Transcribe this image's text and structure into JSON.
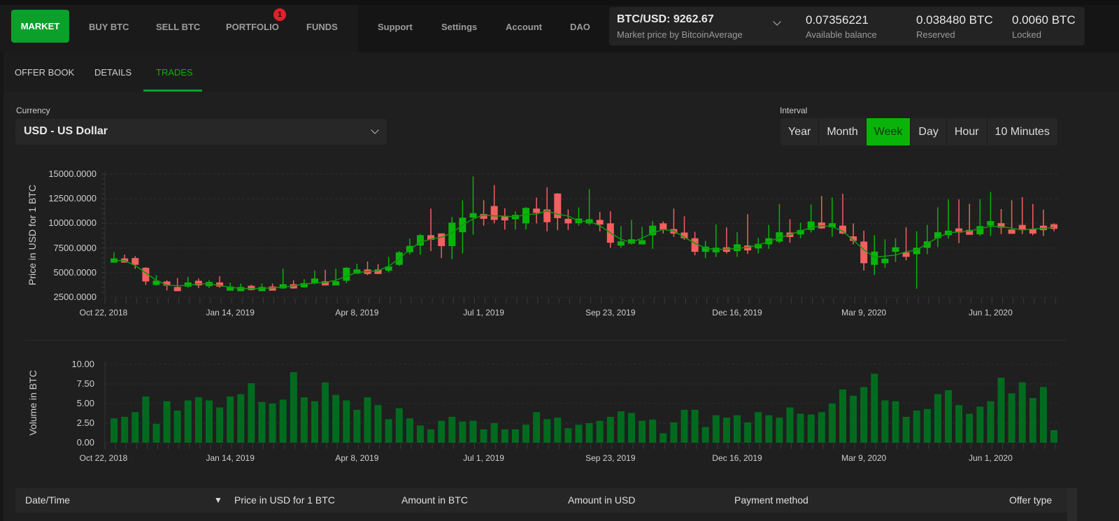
{
  "nav": {
    "market": "MARKET",
    "buy": "BUY BTC",
    "sell": "SELL BTC",
    "portfolio": "PORTFOLIO",
    "portfolio_badge": "1",
    "funds": "FUNDS",
    "support": "Support",
    "settings": "Settings",
    "account": "Account",
    "dao": "DAO"
  },
  "balance": {
    "price": "BTC/USD: 9262.67",
    "price_source": "Market price by BitcoinAverage",
    "available": "0.07356221",
    "available_label": "Available balance",
    "reserved": "0.038480 BTC",
    "reserved_label": "Reserved",
    "locked": "0.0060 BTC",
    "locked_label": "Locked"
  },
  "tabs": [
    {
      "label": "OFFER BOOK"
    },
    {
      "label": "DETAILS"
    },
    {
      "label": "TRADES",
      "active": true
    }
  ],
  "currency": {
    "label": "Currency",
    "value": "USD  -  US Dollar"
  },
  "interval": {
    "label": "Interval",
    "options": [
      "Year",
      "Month",
      "Week",
      "Day",
      "Hour",
      "10 Minutes"
    ],
    "selected": "Week"
  },
  "colors": {
    "accent": "#0aa02a",
    "up": "#0ab30a",
    "down": "#f55f5f",
    "volume": "#006b1f",
    "badge": "#e0202a"
  },
  "chart_data": [
    {
      "type": "candlestick",
      "ylabel": "Price in USD for 1 BTC",
      "ylim": [
        2500,
        15000
      ],
      "yticks": [
        "15000.0000",
        "12500.0000",
        "10000.0000",
        "7500.0000",
        "5000.0000",
        "2500.0000"
      ],
      "xticks": [
        "Oct 22, 2018",
        "Jan 14, 2019",
        "Apr 8, 2019",
        "Jul 1, 2019",
        "Sep 23, 2019",
        "Dec 16, 2019",
        "Mar 9, 2020",
        "Jun 1, 2020"
      ],
      "xtick_dates": [
        "2018-10-22",
        "2019-01-14",
        "2019-04-08",
        "2019-07-01",
        "2019-09-23",
        "2019-12-16",
        "2020-03-09",
        "2020-06-01"
      ],
      "grid": true,
      "moving_average": true,
      "dates": [
        "2018-10-29",
        "2018-11-05",
        "2018-11-12",
        "2018-11-19",
        "2018-11-26",
        "2018-12-03",
        "2018-12-10",
        "2018-12-17",
        "2018-12-24",
        "2018-12-31",
        "2019-01-07",
        "2019-01-14",
        "2019-01-21",
        "2019-01-28",
        "2019-02-04",
        "2019-02-11",
        "2019-02-18",
        "2019-02-25",
        "2019-03-04",
        "2019-03-11",
        "2019-03-18",
        "2019-03-25",
        "2019-04-01",
        "2019-04-08",
        "2019-04-15",
        "2019-04-22",
        "2019-04-29",
        "2019-05-06",
        "2019-05-13",
        "2019-05-20",
        "2019-05-27",
        "2019-06-03",
        "2019-06-10",
        "2019-06-17",
        "2019-06-24",
        "2019-07-01",
        "2019-07-08",
        "2019-07-15",
        "2019-07-22",
        "2019-07-29",
        "2019-08-05",
        "2019-08-12",
        "2019-08-19",
        "2019-08-26",
        "2019-09-02",
        "2019-09-09",
        "2019-09-16",
        "2019-09-23",
        "2019-09-30",
        "2019-10-07",
        "2019-10-14",
        "2019-10-21",
        "2019-10-28",
        "2019-11-04",
        "2019-11-11",
        "2019-11-18",
        "2019-11-25",
        "2019-12-02",
        "2019-12-09",
        "2019-12-16",
        "2019-12-23",
        "2019-12-30",
        "2020-01-06",
        "2020-01-13",
        "2020-01-20",
        "2020-01-27",
        "2020-02-03",
        "2020-02-10",
        "2020-02-17",
        "2020-02-24",
        "2020-03-02",
        "2020-03-09",
        "2020-03-16",
        "2020-03-23",
        "2020-03-30",
        "2020-04-06",
        "2020-04-13",
        "2020-04-20",
        "2020-04-27",
        "2020-05-04",
        "2020-05-11",
        "2020-05-18",
        "2020-05-25",
        "2020-06-01",
        "2020-06-08",
        "2020-06-15",
        "2020-06-22",
        "2020-06-29",
        "2020-07-06",
        "2020-07-13"
      ],
      "ohlc": [
        [
          6020,
          7060,
          6020,
          6440
        ],
        [
          6440,
          6830,
          6020,
          6020
        ],
        [
          6480,
          6670,
          5370,
          5790
        ],
        [
          5490,
          5560,
          3750,
          4100
        ],
        [
          3750,
          4740,
          3680,
          4180
        ],
        [
          4100,
          4210,
          3190,
          3700
        ],
        [
          3540,
          4440,
          3120,
          3120
        ],
        [
          3590,
          4580,
          3470,
          4000
        ],
        [
          4170,
          4400,
          3430,
          3700
        ],
        [
          3660,
          4240,
          3430,
          4050
        ],
        [
          4000,
          4630,
          3470,
          3590
        ],
        [
          3190,
          3980,
          3190,
          3590
        ],
        [
          3120,
          3890,
          3120,
          3540
        ],
        [
          3660,
          3770,
          3190,
          3240
        ],
        [
          3170,
          3890,
          3170,
          3540
        ],
        [
          3590,
          3890,
          3170,
          3170
        ],
        [
          3400,
          5390,
          3360,
          3820
        ],
        [
          3820,
          4210,
          3360,
          3400
        ],
        [
          3520,
          4330,
          3470,
          3930
        ],
        [
          3930,
          5210,
          3820,
          4400
        ],
        [
          4120,
          5280,
          3700,
          3700
        ],
        [
          3750,
          5390,
          3700,
          4120
        ],
        [
          4170,
          5560,
          3930,
          5490
        ],
        [
          4930,
          5900,
          4860,
          5320
        ],
        [
          5320,
          6130,
          4740,
          4860
        ],
        [
          5320,
          5860,
          4860,
          4860
        ],
        [
          5210,
          6600,
          5020,
          5620
        ],
        [
          5790,
          7180,
          5670,
          7060
        ],
        [
          7060,
          8450,
          6830,
          7710
        ],
        [
          7750,
          8910,
          6830,
          8800
        ],
        [
          8800,
          11500,
          7180,
          8330
        ],
        [
          8980,
          8980,
          6480,
          7690
        ],
        [
          7690,
          10650,
          6370,
          10070
        ],
        [
          9100,
          12340,
          6940,
          10580
        ],
        [
          10580,
          14770,
          8840,
          11040
        ],
        [
          10950,
          12340,
          9770,
          10460
        ],
        [
          11760,
          13890,
          10000,
          10350
        ],
        [
          10740,
          11530,
          9370,
          10300
        ],
        [
          10420,
          11230,
          9370,
          10860
        ],
        [
          10000,
          11640,
          9370,
          11570
        ],
        [
          11500,
          12620,
          10000,
          11060
        ],
        [
          11410,
          13660,
          9190,
          10120
        ],
        [
          13030,
          13080,
          9310,
          10530
        ],
        [
          10460,
          11410,
          9330,
          10000
        ],
        [
          10020,
          11620,
          9770,
          10490
        ],
        [
          10000,
          13470,
          9840,
          10420
        ],
        [
          10350,
          11160,
          9190,
          9880
        ],
        [
          10000,
          11230,
          7520,
          8030
        ],
        [
          7750,
          9720,
          7520,
          8170
        ],
        [
          7940,
          10350,
          7870,
          8380
        ],
        [
          7870,
          9650,
          7870,
          8290
        ],
        [
          8800,
          10250,
          7410,
          9770
        ],
        [
          10000,
          10190,
          8980,
          9370
        ],
        [
          9420,
          11500,
          8630,
          8960
        ],
        [
          9070,
          10720,
          8330,
          8490
        ],
        [
          8490,
          9140,
          6760,
          7110
        ],
        [
          7110,
          8220,
          6480,
          7640
        ],
        [
          7060,
          9880,
          6600,
          7520
        ],
        [
          7570,
          9610,
          6940,
          7110
        ],
        [
          7180,
          9100,
          6600,
          7870
        ],
        [
          7750,
          10930,
          6900,
          7250
        ],
        [
          7450,
          8520,
          6940,
          7920
        ],
        [
          7870,
          9840,
          7410,
          8490
        ],
        [
          8150,
          11970,
          7990,
          9100
        ],
        [
          9070,
          10420,
          8030,
          8610
        ],
        [
          8870,
          10070,
          8490,
          9330
        ],
        [
          9330,
          11920,
          9070,
          10190
        ],
        [
          10090,
          12780,
          9440,
          9490
        ],
        [
          9610,
          12620,
          8630,
          10020
        ],
        [
          9770,
          13010,
          8910,
          8960
        ],
        [
          8680,
          10000,
          7870,
          8220
        ],
        [
          8150,
          9260,
          5210,
          5950
        ],
        [
          5790,
          8800,
          4740,
          7130
        ],
        [
          5950,
          8380,
          5490,
          6410
        ],
        [
          7110,
          8490,
          6090,
          7570
        ],
        [
          7060,
          9610,
          6250,
          6600
        ],
        [
          6870,
          9210,
          3360,
          7520
        ],
        [
          7520,
          9840,
          6870,
          8170
        ],
        [
          8490,
          11620,
          7590,
          9100
        ],
        [
          8800,
          12430,
          8450,
          9260
        ],
        [
          9490,
          12430,
          7990,
          9070
        ],
        [
          9330,
          11990,
          8910,
          8840
        ],
        [
          8890,
          12450,
          8730,
          9720
        ],
        [
          9770,
          13190,
          8730,
          10230
        ],
        [
          10020,
          11460,
          8910,
          9560
        ],
        [
          9370,
          12340,
          8960,
          8960
        ],
        [
          9840,
          12660,
          8910,
          9370
        ],
        [
          9420,
          11970,
          8800,
          8960
        ],
        [
          9770,
          11390,
          8730,
          9310
        ],
        [
          9910,
          10000,
          9200,
          9440
        ]
      ]
    },
    {
      "type": "bar",
      "ylabel": "Volume in BTC",
      "ylim": [
        0,
        10
      ],
      "yticks": [
        "10.00",
        "7.50",
        "5.00",
        "2.50",
        "0.00"
      ],
      "xticks": [
        "Oct 22, 2018",
        "Jan 14, 2019",
        "Apr 8, 2019",
        "Jul 1, 2019",
        "Sep 23, 2019",
        "Dec 16, 2019",
        "Mar 9, 2020",
        "Jun 1, 2020"
      ],
      "grid": true,
      "values": [
        3.1,
        3.3,
        3.9,
        5.9,
        2.4,
        5.3,
        4.1,
        5.4,
        5.8,
        5.4,
        4.5,
        5.9,
        6.2,
        7.6,
        5.2,
        5.0,
        5.5,
        9.0,
        5.8,
        5.3,
        7.7,
        6.1,
        5.4,
        4.2,
        5.8,
        4.8,
        3.0,
        4.4,
        3.1,
        2.2,
        1.7,
        2.8,
        3.3,
        2.7,
        2.8,
        1.7,
        2.5,
        1.7,
        1.7,
        2.3,
        3.9,
        3.0,
        3.2,
        1.85,
        2.3,
        2.5,
        2.8,
        3.3,
        4.0,
        3.8,
        2.8,
        2.95,
        1.2,
        2.6,
        4.2,
        4.2,
        2.0,
        3.5,
        3.2,
        3.5,
        2.6,
        3.9,
        3.5,
        3.2,
        4.5,
        3.7,
        3.6,
        3.9,
        5.0,
        6.8,
        6.0,
        7.1,
        8.8,
        5.4,
        5.3,
        3.3,
        4.1,
        4.3,
        6.2,
        6.7,
        4.8,
        3.7,
        4.6,
        5.3,
        8.3,
        6.3,
        7.7,
        5.7,
        7.1,
        1.6
      ]
    }
  ],
  "table": {
    "columns": [
      "Date/Time",
      "Price in USD for 1 BTC",
      "Amount in BTC",
      "Amount in USD",
      "Payment method",
      "Offer type"
    ],
    "sort_indicator": "▼"
  }
}
